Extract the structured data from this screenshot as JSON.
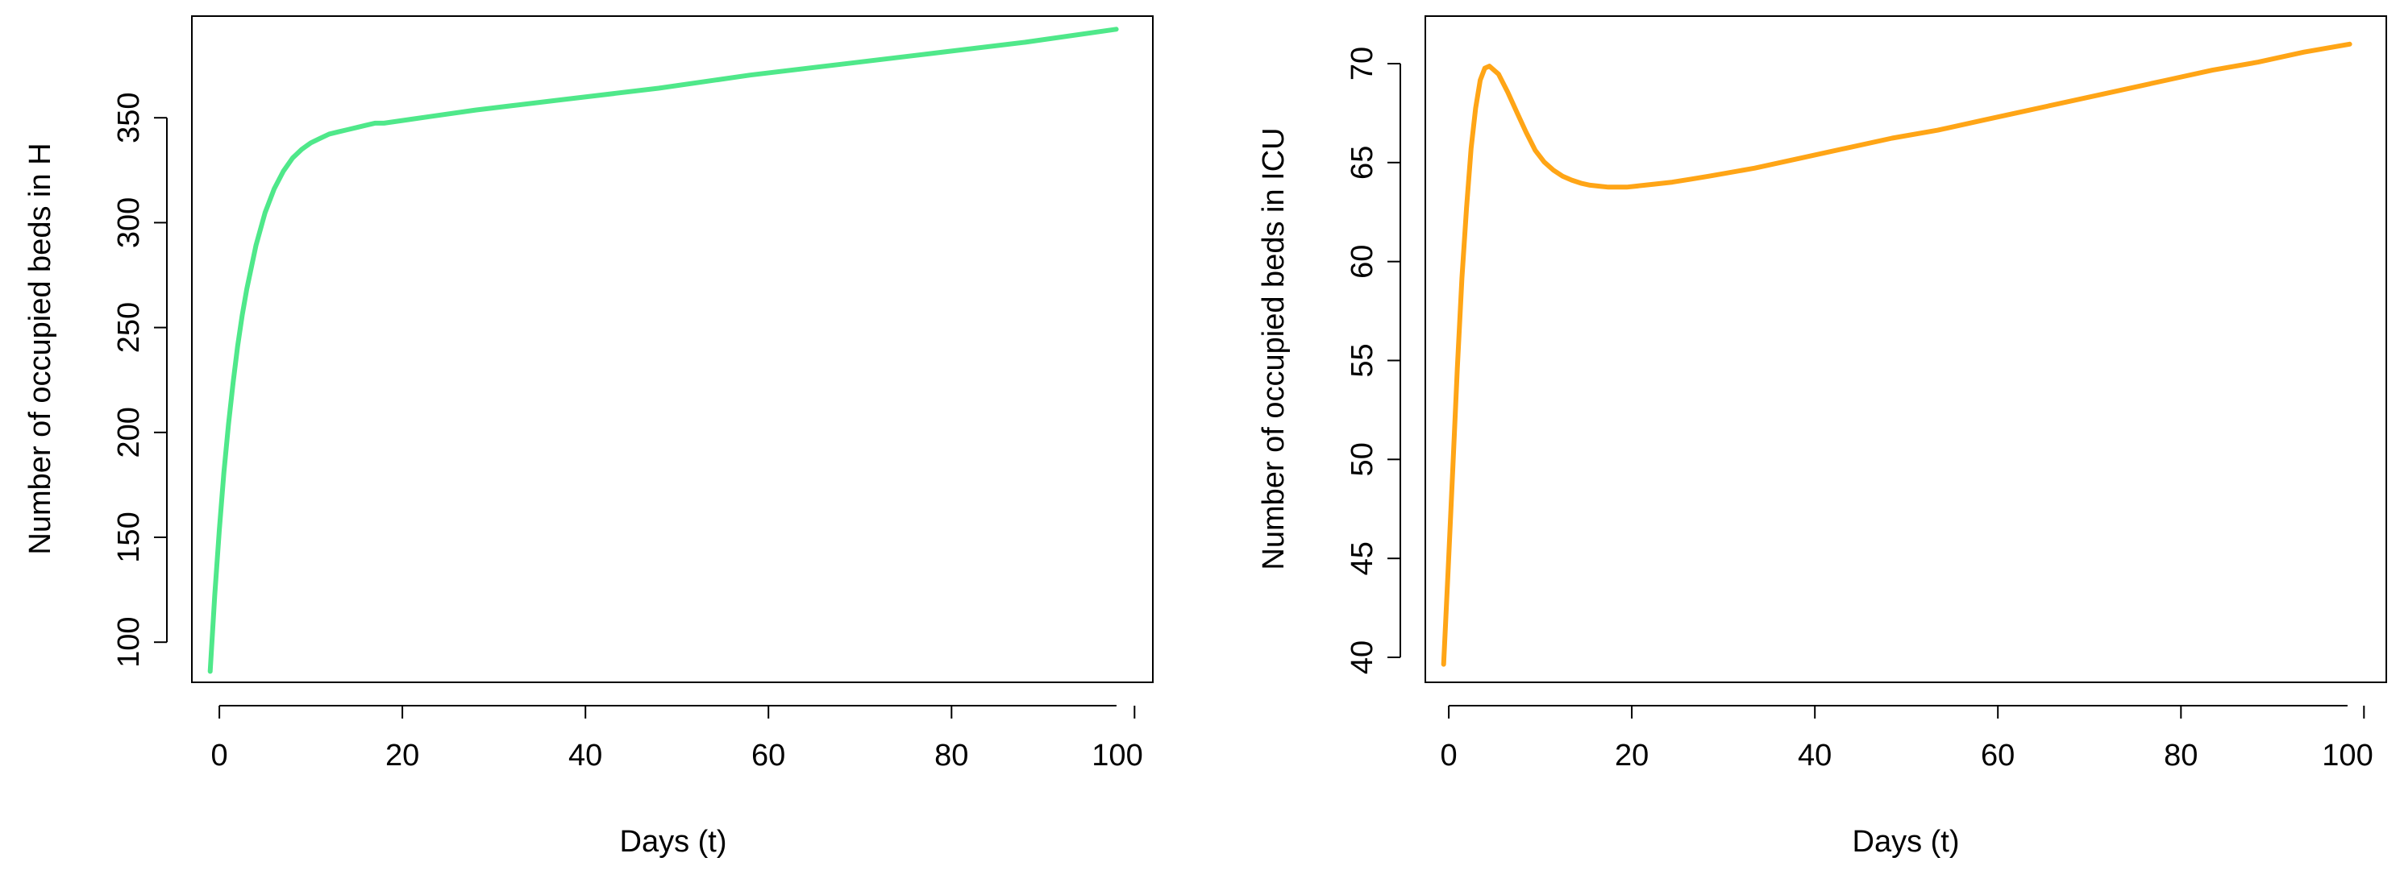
{
  "chart_data": [
    {
      "type": "line",
      "title": "",
      "xlabel": "Days (t)",
      "ylabel": "Number of occupied beds in H",
      "xlim": [
        -1,
        104
      ],
      "ylim": [
        88,
        393
      ],
      "x_ticks": [
        0,
        20,
        40,
        60,
        80,
        100
      ],
      "y_ticks": [
        100,
        150,
        200,
        250,
        300,
        350
      ],
      "grid": false,
      "legend": "none",
      "color": "#4fe88a",
      "series": [
        {
          "x": [
            1,
            1.5,
            2,
            2.5,
            3,
            3.5,
            4,
            4.5,
            5,
            6,
            7,
            8,
            9,
            10,
            11,
            12,
            13,
            14,
            15,
            16,
            17,
            18,
            19,
            20,
            25,
            30,
            40,
            50,
            60,
            70,
            80,
            90,
            100
          ],
          "values": [
            93,
            128,
            158,
            184,
            206,
            225,
            242,
            256,
            268,
            288,
            303,
            314,
            322,
            328,
            332,
            335,
            337,
            339,
            340,
            341,
            342,
            343,
            344,
            344,
            347,
            350,
            355,
            360,
            366,
            371,
            376,
            381,
            387
          ]
        }
      ]
    },
    {
      "type": "line",
      "title": "",
      "xlabel": "Days (t)",
      "ylabel": "Number of occupied beds in ICU",
      "xlim": [
        -1,
        104
      ],
      "ylim": [
        39.3,
        72.6
      ],
      "x_ticks": [
        0,
        20,
        40,
        60,
        80,
        100
      ],
      "y_ticks": [
        40,
        45,
        50,
        55,
        60,
        65,
        70
      ],
      "grid": false,
      "legend": "none",
      "color": "#ffa516",
      "series": [
        {
          "x": [
            1,
            1.5,
            2,
            2.5,
            3,
            3.5,
            4,
            4.5,
            5,
            5.5,
            6,
            7,
            8,
            9,
            10,
            11,
            12,
            13,
            14,
            15,
            16,
            17,
            18,
            19,
            20,
            21,
            22,
            24,
            26,
            28,
            30,
            35,
            40,
            45,
            50,
            55,
            60,
            65,
            70,
            75,
            80,
            85,
            90,
            95,
            100
          ],
          "values": [
            40.2,
            45,
            50,
            55,
            59.5,
            63,
            66,
            68,
            69.4,
            70.0,
            70.1,
            69.7,
            68.8,
            67.8,
            66.8,
            65.9,
            65.3,
            64.9,
            64.6,
            64.4,
            64.25,
            64.15,
            64.1,
            64.05,
            64.05,
            64.05,
            64.1,
            64.2,
            64.3,
            64.45,
            64.6,
            65.0,
            65.5,
            66.0,
            66.5,
            66.9,
            67.4,
            67.9,
            68.4,
            68.9,
            69.4,
            69.9,
            70.3,
            70.8,
            71.2
          ]
        }
      ]
    }
  ]
}
